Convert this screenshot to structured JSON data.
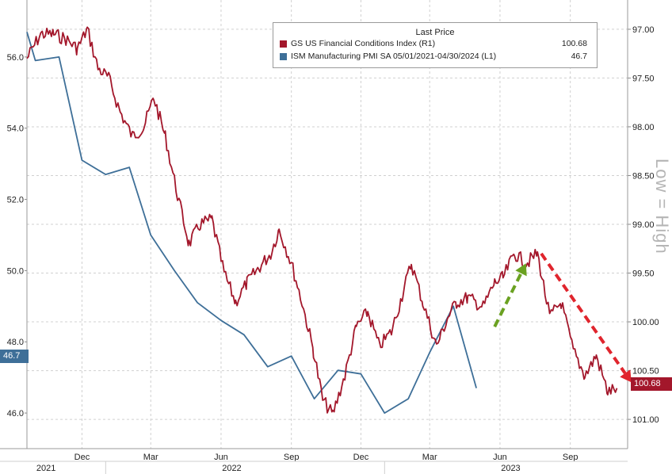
{
  "chart_data": {
    "type": "line",
    "legend": {
      "title": "Last Price",
      "placement": "top-right",
      "entries": [
        {
          "name": "GS US Financial Conditions Index  (R1)",
          "value": "100.68",
          "color": "#a3172b"
        },
        {
          "name": "ISM Manufacturing PMI SA 05/01/2021-04/30/2024  (L1)",
          "value": "46.7",
          "color": "#3e6f98"
        }
      ]
    },
    "left_axis": {
      "ticks": [
        "56.0",
        "54.0",
        "52.0",
        "50.0",
        "48.0",
        "46.0"
      ],
      "range": [
        45.0,
        57.6
      ]
    },
    "right_axis": {
      "ticks": [
        "97.00",
        "97.50",
        "98.00",
        "98.50",
        "99.00",
        "99.50",
        "100.00",
        "100.50",
        "101.00"
      ],
      "range": [
        96.7,
        101.3
      ],
      "inverted": true
    },
    "x_axis": {
      "ticks": [
        "Dec",
        "Mar",
        "Jun",
        "Sep",
        "Dec",
        "Mar",
        "Jun",
        "Sep"
      ],
      "tick_dates": [
        "2021-12-01",
        "2022-03-01",
        "2022-06-01",
        "2022-09-01",
        "2022-12-01",
        "2023-03-01",
        "2023-06-01",
        "2023-09-01"
      ],
      "years": [
        {
          "label": "2021",
          "date": "2021-10-15"
        },
        {
          "label": "2022",
          "date": "2022-06-15"
        },
        {
          "label": "2023",
          "date": "2023-06-15"
        }
      ],
      "range": [
        "2021-09-20",
        "2023-11-15"
      ]
    },
    "grid": true,
    "series": [
      {
        "name": "ISM Manufacturing PMI SA 05/01/2021-04/30/2024",
        "axis": "left",
        "color": "#3e6f98",
        "points": [
          [
            "2021-09-20",
            56.7
          ],
          [
            "2021-10-01",
            55.9
          ],
          [
            "2021-11-01",
            56.0
          ],
          [
            "2021-12-01",
            53.1
          ],
          [
            "2022-01-01",
            52.7
          ],
          [
            "2022-02-01",
            52.9
          ],
          [
            "2022-03-01",
            51.0
          ],
          [
            "2022-04-01",
            50.0
          ],
          [
            "2022-05-01",
            49.1
          ],
          [
            "2022-06-01",
            48.6
          ],
          [
            "2022-07-01",
            48.2
          ],
          [
            "2022-08-01",
            47.3
          ],
          [
            "2022-09-01",
            47.6
          ],
          [
            "2022-10-01",
            46.4
          ],
          [
            "2022-11-01",
            47.2
          ],
          [
            "2022-12-01",
            47.1
          ],
          [
            "2023-01-01",
            46.0
          ],
          [
            "2023-02-01",
            46.4
          ],
          [
            "2023-03-01",
            47.7
          ],
          [
            "2023-04-01",
            49.0
          ],
          [
            "2023-05-01",
            46.7
          ]
        ]
      },
      {
        "name": "GS US Financial Conditions Index",
        "axis": "right",
        "color": "#a3172b",
        "anchors": [
          [
            "2021-09-20",
            97.3
          ],
          [
            "2021-10-08",
            97.05
          ],
          [
            "2021-10-25",
            97.05
          ],
          [
            "2021-11-10",
            97.1
          ],
          [
            "2021-11-25",
            97.2
          ],
          [
            "2021-12-08",
            97.0
          ],
          [
            "2021-12-22",
            97.4
          ],
          [
            "2022-01-05",
            97.5
          ],
          [
            "2022-01-20",
            97.85
          ],
          [
            "2022-02-05",
            98.1
          ],
          [
            "2022-02-20",
            98.0
          ],
          [
            "2022-03-05",
            97.7
          ],
          [
            "2022-03-20",
            98.1
          ],
          [
            "2022-04-05",
            98.7
          ],
          [
            "2022-04-20",
            99.2
          ],
          [
            "2022-05-05",
            99.0
          ],
          [
            "2022-05-20",
            98.95
          ],
          [
            "2022-06-05",
            99.5
          ],
          [
            "2022-06-20",
            99.8
          ],
          [
            "2022-07-05",
            99.6
          ],
          [
            "2022-07-20",
            99.45
          ],
          [
            "2022-08-05",
            99.3
          ],
          [
            "2022-08-16",
            99.05
          ],
          [
            "2022-09-01",
            99.4
          ],
          [
            "2022-09-15",
            99.8
          ],
          [
            "2022-09-30",
            100.3
          ],
          [
            "2022-10-12",
            100.8
          ],
          [
            "2022-10-25",
            100.95
          ],
          [
            "2022-11-10",
            100.55
          ],
          [
            "2022-11-25",
            100.05
          ],
          [
            "2022-12-10",
            99.9
          ],
          [
            "2022-12-25",
            100.25
          ],
          [
            "2023-01-10",
            100.1
          ],
          [
            "2023-01-25",
            99.7
          ],
          [
            "2023-02-05",
            99.4
          ],
          [
            "2023-02-20",
            99.8
          ],
          [
            "2023-03-10",
            100.25
          ],
          [
            "2023-03-25",
            99.95
          ],
          [
            "2023-04-05",
            99.8
          ],
          [
            "2023-04-20",
            99.75
          ],
          [
            "2023-05-10",
            99.85
          ],
          [
            "2023-05-25",
            99.6
          ],
          [
            "2023-06-05",
            99.55
          ],
          [
            "2023-06-20",
            99.3
          ],
          [
            "2023-07-05",
            99.4
          ],
          [
            "2023-07-20",
            99.3
          ],
          [
            "2023-08-05",
            99.95
          ],
          [
            "2023-08-20",
            99.8
          ],
          [
            "2023-09-05",
            100.3
          ],
          [
            "2023-09-20",
            100.55
          ],
          [
            "2023-10-05",
            100.35
          ],
          [
            "2023-10-20",
            100.72
          ],
          [
            "2023-11-01",
            100.68
          ]
        ]
      }
    ],
    "annotations": [
      {
        "type": "arrow",
        "color": "#6aa121",
        "style": "dashed",
        "axis": "right",
        "from": [
          "2023-05-25",
          100.05
        ],
        "to": [
          "2023-07-05",
          99.4
        ]
      },
      {
        "type": "arrow",
        "color": "#e0252d",
        "style": "dashed",
        "axis": "right",
        "from": [
          "2023-07-25",
          99.3
        ],
        "to": [
          "2023-11-20",
          100.62
        ]
      }
    ],
    "last_value_labels": {
      "left": "46.7",
      "right": "100.68"
    },
    "side_note": "Low = High"
  }
}
